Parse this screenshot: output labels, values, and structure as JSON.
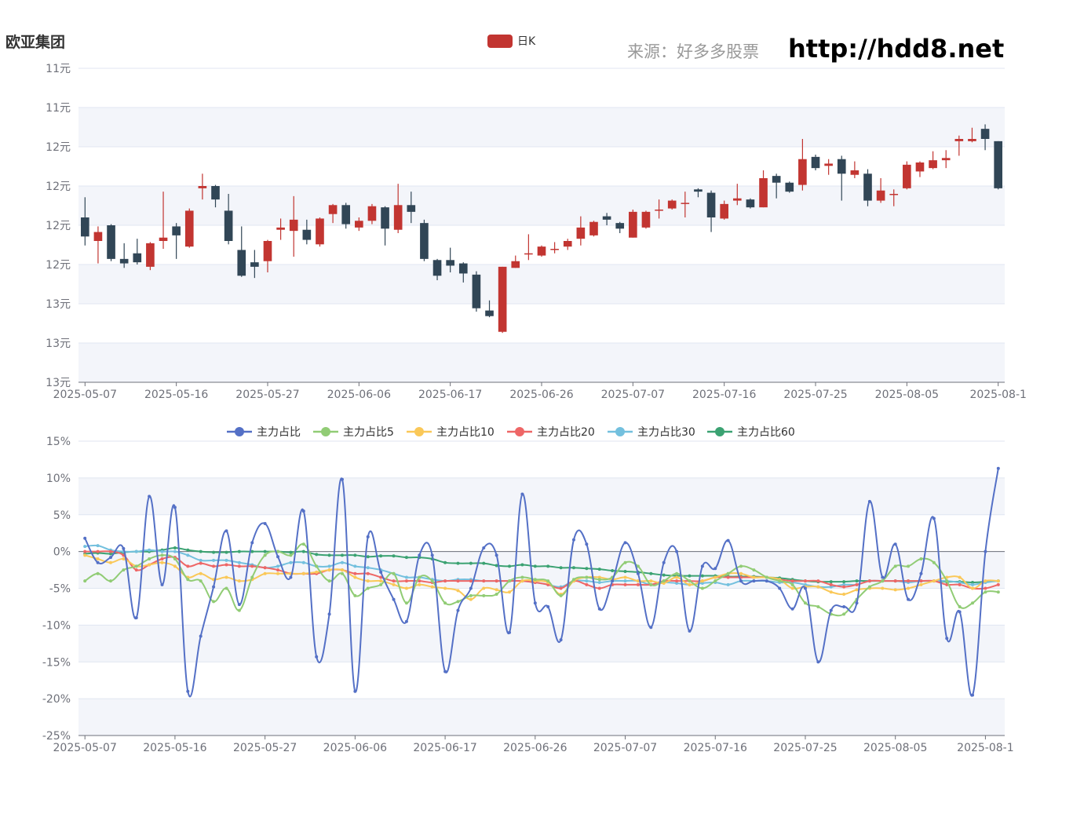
{
  "title": "欧亚集团",
  "source_text": "来源：好多多股票",
  "url_text": "http://hdd8.net",
  "colors": {
    "up": "#c23531",
    "down": "#314656",
    "band": "#f3f5fa",
    "grid": "#e0e6f1",
    "axis": "#6e7079"
  },
  "chart_data": [
    {
      "type": "candlestick",
      "legend": [
        "日K"
      ],
      "y_tick_labels": [
        "11元",
        "11元",
        "12元",
        "12元",
        "12元",
        "12元",
        "13元",
        "13元",
        "13元"
      ],
      "ylim": [
        11.0,
        13.8
      ],
      "x_tick_labels": [
        "2025-05-07",
        "2025-05-16",
        "2025-05-27",
        "2025-06-06",
        "2025-06-17",
        "2025-06-26",
        "2025-07-07",
        "2025-07-16",
        "2025-07-25",
        "2025-08-05",
        "2025-08-1"
      ],
      "x_tick_indices": [
        0,
        7,
        14,
        21,
        28,
        35,
        42,
        49,
        56,
        63,
        70
      ],
      "candles": [
        {
          "o": 12.47,
          "c": 12.3,
          "h": 12.65,
          "l": 12.22
        },
        {
          "o": 12.26,
          "c": 12.34,
          "h": 12.39,
          "l": 12.06
        },
        {
          "o": 12.4,
          "c": 12.1,
          "h": 12.41,
          "l": 12.08
        },
        {
          "o": 12.1,
          "c": 12.06,
          "h": 12.24,
          "l": 12.02
        },
        {
          "o": 12.15,
          "c": 12.07,
          "h": 12.28,
          "l": 12.05
        },
        {
          "o": 12.03,
          "c": 12.24,
          "h": 12.25,
          "l": 12.0
        },
        {
          "o": 12.26,
          "c": 12.29,
          "h": 12.7,
          "l": 12.19
        },
        {
          "o": 12.39,
          "c": 12.31,
          "h": 12.42,
          "l": 12.1
        },
        {
          "o": 12.21,
          "c": 12.53,
          "h": 12.55,
          "l": 12.2
        },
        {
          "o": 12.73,
          "c": 12.75,
          "h": 12.86,
          "l": 12.63
        },
        {
          "o": 12.75,
          "c": 12.63,
          "h": 12.76,
          "l": 12.56
        },
        {
          "o": 12.53,
          "c": 12.26,
          "h": 12.68,
          "l": 12.23
        },
        {
          "o": 12.18,
          "c": 11.95,
          "h": 12.39,
          "l": 11.94
        },
        {
          "o": 12.07,
          "c": 12.03,
          "h": 12.18,
          "l": 11.93
        },
        {
          "o": 12.08,
          "c": 12.26,
          "h": 12.27,
          "l": 11.98
        },
        {
          "o": 12.36,
          "c": 12.38,
          "h": 12.46,
          "l": 12.27
        },
        {
          "o": 12.35,
          "c": 12.45,
          "h": 12.66,
          "l": 12.12
        },
        {
          "o": 12.36,
          "c": 12.27,
          "h": 12.45,
          "l": 12.23
        },
        {
          "o": 12.23,
          "c": 12.46,
          "h": 12.47,
          "l": 12.21
        },
        {
          "o": 12.5,
          "c": 12.58,
          "h": 12.59,
          "l": 12.42
        },
        {
          "o": 12.58,
          "c": 12.41,
          "h": 12.6,
          "l": 12.37
        },
        {
          "o": 12.38,
          "c": 12.44,
          "h": 12.47,
          "l": 12.35
        },
        {
          "o": 12.44,
          "c": 12.57,
          "h": 12.59,
          "l": 12.41
        },
        {
          "o": 12.56,
          "c": 12.37,
          "h": 12.57,
          "l": 12.22
        },
        {
          "o": 12.36,
          "c": 12.58,
          "h": 12.77,
          "l": 12.33
        },
        {
          "o": 12.58,
          "c": 12.52,
          "h": 12.7,
          "l": 12.42
        },
        {
          "o": 12.42,
          "c": 12.1,
          "h": 12.45,
          "l": 12.08
        },
        {
          "o": 12.09,
          "c": 11.95,
          "h": 12.1,
          "l": 11.91
        },
        {
          "o": 12.09,
          "c": 12.04,
          "h": 12.2,
          "l": 11.98
        },
        {
          "o": 12.06,
          "c": 11.97,
          "h": 12.07,
          "l": 11.89
        },
        {
          "o": 11.96,
          "c": 11.66,
          "h": 11.99,
          "l": 11.63
        },
        {
          "o": 11.64,
          "c": 11.59,
          "h": 11.73,
          "l": 11.58
        },
        {
          "o": 11.45,
          "c": 12.03,
          "h": 12.03,
          "l": 11.44
        },
        {
          "o": 12.02,
          "c": 12.08,
          "h": 12.13,
          "l": 12.02
        },
        {
          "o": 12.15,
          "c": 12.15,
          "h": 12.32,
          "l": 12.09
        },
        {
          "o": 12.13,
          "c": 12.21,
          "h": 12.22,
          "l": 12.12
        },
        {
          "o": 12.18,
          "c": 12.19,
          "h": 12.25,
          "l": 12.15
        },
        {
          "o": 12.21,
          "c": 12.26,
          "h": 12.28,
          "l": 12.18
        },
        {
          "o": 12.28,
          "c": 12.38,
          "h": 12.48,
          "l": 12.22
        },
        {
          "o": 12.31,
          "c": 12.43,
          "h": 12.44,
          "l": 12.3
        },
        {
          "o": 12.48,
          "c": 12.45,
          "h": 12.51,
          "l": 12.4
        },
        {
          "o": 12.42,
          "c": 12.37,
          "h": 12.43,
          "l": 12.33
        },
        {
          "o": 12.29,
          "c": 12.52,
          "h": 12.54,
          "l": 12.29
        },
        {
          "o": 12.38,
          "c": 12.52,
          "h": 12.53,
          "l": 12.37
        },
        {
          "o": 12.53,
          "c": 12.54,
          "h": 12.63,
          "l": 12.46
        },
        {
          "o": 12.55,
          "c": 12.62,
          "h": 12.63,
          "l": 12.54
        },
        {
          "o": 12.6,
          "c": 12.6,
          "h": 12.7,
          "l": 12.47
        },
        {
          "o": 12.72,
          "c": 12.7,
          "h": 12.73,
          "l": 12.65
        },
        {
          "o": 12.69,
          "c": 12.47,
          "h": 12.71,
          "l": 12.34
        },
        {
          "o": 12.46,
          "c": 12.59,
          "h": 12.62,
          "l": 12.45
        },
        {
          "o": 12.62,
          "c": 12.64,
          "h": 12.77,
          "l": 12.58
        },
        {
          "o": 12.63,
          "c": 12.56,
          "h": 12.64,
          "l": 12.55
        },
        {
          "o": 12.56,
          "c": 12.82,
          "h": 12.89,
          "l": 12.56
        },
        {
          "o": 12.84,
          "c": 12.78,
          "h": 12.86,
          "l": 12.64
        },
        {
          "o": 12.78,
          "c": 12.7,
          "h": 12.79,
          "l": 12.69
        },
        {
          "o": 12.76,
          "c": 12.99,
          "h": 13.17,
          "l": 12.71
        },
        {
          "o": 13.01,
          "c": 12.91,
          "h": 13.03,
          "l": 12.89
        },
        {
          "o": 12.93,
          "c": 12.95,
          "h": 12.99,
          "l": 12.85
        },
        {
          "o": 12.99,
          "c": 12.86,
          "h": 13.02,
          "l": 12.62
        },
        {
          "o": 12.85,
          "c": 12.89,
          "h": 12.97,
          "l": 12.82
        },
        {
          "o": 12.86,
          "c": 12.62,
          "h": 12.9,
          "l": 12.57
        },
        {
          "o": 12.62,
          "c": 12.71,
          "h": 12.82,
          "l": 12.6
        },
        {
          "o": 12.67,
          "c": 12.68,
          "h": 12.72,
          "l": 12.57
        },
        {
          "o": 12.73,
          "c": 12.94,
          "h": 12.97,
          "l": 12.72
        },
        {
          "o": 12.88,
          "c": 12.96,
          "h": 12.97,
          "l": 12.83
        },
        {
          "o": 12.91,
          "c": 12.98,
          "h": 13.06,
          "l": 12.9
        },
        {
          "o": 12.98,
          "c": 13.0,
          "h": 13.07,
          "l": 12.91
        },
        {
          "o": 13.15,
          "c": 13.17,
          "h": 13.2,
          "l": 13.02
        },
        {
          "o": 13.15,
          "c": 13.17,
          "h": 13.27,
          "l": 13.14
        },
        {
          "o": 13.26,
          "c": 13.17,
          "h": 13.3,
          "l": 13.07
        },
        {
          "o": 13.15,
          "c": 12.73,
          "h": 13.15,
          "l": 12.72
        }
      ]
    },
    {
      "type": "line",
      "legend": [
        "主力占比",
        "主力占比5",
        "主力占比10",
        "主力占比20",
        "主力占比30",
        "主力占比60"
      ],
      "series_colors": [
        "#5470c6",
        "#91cc75",
        "#fac858",
        "#ee6666",
        "#73c0de",
        "#3ba272"
      ],
      "y_tick_labels": [
        "15%",
        "10%",
        "5%",
        "0%",
        "-5%",
        "-10%",
        "-15%",
        "-20%",
        "-25%"
      ],
      "ylim": [
        -25,
        15
      ],
      "x_tick_labels": [
        "2025-05-07",
        "2025-05-16",
        "2025-05-27",
        "2025-06-06",
        "2025-06-17",
        "2025-06-26",
        "2025-07-07",
        "2025-07-16",
        "2025-07-25",
        "2025-08-05",
        "2025-08-1"
      ],
      "x_tick_indices": [
        0,
        7,
        14,
        21,
        28,
        35,
        42,
        49,
        56,
        63,
        70
      ],
      "series": [
        {
          "name": "主力占比",
          "values": [
            1.8,
            -1.5,
            -0.8,
            0.4,
            -9.0,
            7.5,
            -4.5,
            6.0,
            -19.0,
            -11.5,
            -4.8,
            2.8,
            -7.2,
            1.2,
            3.8,
            -0.7,
            -3.5,
            5.5,
            -14.3,
            -8.5,
            9.8,
            -19.0,
            2.0,
            -2.8,
            -6.5,
            -9.5,
            -0.5,
            -0.5,
            -16.3,
            -8.0,
            -5.0,
            0.5,
            -0.5,
            -11.0,
            7.8,
            -7.0,
            -7.5,
            -12.0,
            1.6,
            1.0,
            -7.8,
            -4.0,
            1.2,
            -3.0,
            -10.3,
            -1.5,
            0.0,
            -10.8,
            -2.0,
            -2.3,
            1.5,
            -4.0,
            -4.0,
            -4.0,
            -5.0,
            -7.8,
            -5.0,
            -15.0,
            -8.0,
            -7.5,
            -7.0,
            6.8,
            -3.5,
            1.0,
            -6.5,
            -3.0,
            4.5,
            -11.8,
            -8.2,
            -19.5,
            0.0,
            11.3
          ]
        },
        {
          "name": "主力占比5",
          "values": [
            -4.0,
            -3.0,
            -4.0,
            -2.5,
            -2.0,
            -1.0,
            -0.5,
            -1.0,
            -3.8,
            -4.0,
            -6.8,
            -5.0,
            -8.0,
            -3.5,
            -0.5,
            0.0,
            -0.5,
            1.0,
            -2.0,
            -4.0,
            -3.0,
            -6.0,
            -5.0,
            -4.5,
            -3.0,
            -7.0,
            -3.5,
            -4.0,
            -7.0,
            -6.8,
            -6.0,
            -6.0,
            -5.8,
            -4.0,
            -3.5,
            -3.8,
            -4.0,
            -6.0,
            -3.8,
            -3.5,
            -3.8,
            -3.5,
            -1.5,
            -2.0,
            -4.5,
            -4.0,
            -3.0,
            -4.0,
            -5.0,
            -4.0,
            -3.0,
            -2.0,
            -2.5,
            -3.5,
            -4.0,
            -4.5,
            -7.0,
            -7.5,
            -8.5,
            -8.5,
            -6.5,
            -4.8,
            -4.0,
            -2.0,
            -2.0,
            -1.0,
            -1.5,
            -4.0,
            -7.5,
            -7.0,
            -5.5,
            -5.5
          ]
        },
        {
          "name": "主力占比10",
          "values": [
            -0.5,
            -1.0,
            -1.5,
            -1.0,
            -2.0,
            -1.8,
            -1.5,
            -2.0,
            -3.5,
            -3.0,
            -3.8,
            -3.5,
            -4.0,
            -3.8,
            -3.0,
            -3.0,
            -3.0,
            -3.0,
            -2.8,
            -2.5,
            -2.5,
            -3.5,
            -4.0,
            -4.0,
            -4.5,
            -5.0,
            -4.5,
            -4.8,
            -5.0,
            -5.3,
            -6.5,
            -5.0,
            -5.2,
            -5.5,
            -4.0,
            -4.0,
            -4.2,
            -5.8,
            -4.0,
            -3.5,
            -3.5,
            -3.8,
            -3.5,
            -4.0,
            -4.0,
            -4.3,
            -3.5,
            -4.5,
            -4.0,
            -3.5,
            -3.0,
            -3.0,
            -3.5,
            -3.5,
            -3.8,
            -5.0,
            -4.8,
            -4.8,
            -5.5,
            -5.8,
            -5.2,
            -5.0,
            -5.0,
            -5.2,
            -5.0,
            -4.5,
            -4.0,
            -3.5,
            -3.5,
            -5.0,
            -4.0,
            -4.0
          ]
        },
        {
          "name": "主力占比20",
          "values": [
            0.0,
            0.0,
            0.0,
            -0.5,
            -2.5,
            -1.8,
            -1.0,
            -0.8,
            -2.0,
            -1.6,
            -2.0,
            -1.8,
            -2.0,
            -2.0,
            -2.2,
            -2.5,
            -3.0,
            -3.0,
            -3.0,
            -2.5,
            -2.5,
            -3.0,
            -3.0,
            -3.5,
            -4.0,
            -4.0,
            -4.0,
            -4.2,
            -4.0,
            -4.0,
            -4.0,
            -4.0,
            -4.0,
            -4.0,
            -4.0,
            -4.2,
            -4.5,
            -5.0,
            -4.0,
            -4.5,
            -5.0,
            -4.5,
            -4.5,
            -4.5,
            -4.5,
            -4.0,
            -4.0,
            -4.0,
            -4.0,
            -3.5,
            -3.5,
            -3.5,
            -3.5,
            -3.5,
            -3.8,
            -4.0,
            -4.0,
            -4.0,
            -4.5,
            -4.8,
            -4.5,
            -4.0,
            -4.0,
            -4.0,
            -4.0,
            -4.0,
            -4.0,
            -4.5,
            -4.5,
            -5.0,
            -5.0,
            -4.5
          ]
        },
        {
          "name": "主力占比30",
          "values": [
            0.7,
            0.8,
            0.2,
            0.0,
            0.0,
            0.2,
            0.0,
            0.0,
            -0.5,
            -1.2,
            -1.2,
            -1.2,
            -1.5,
            -1.8,
            -2.2,
            -2.0,
            -1.5,
            -1.5,
            -2.0,
            -2.0,
            -1.5,
            -2.0,
            -2.2,
            -2.5,
            -3.0,
            -3.5,
            -3.5,
            -3.8,
            -4.0,
            -3.8,
            -3.8,
            -4.0,
            -4.0,
            -4.0,
            -4.0,
            -4.2,
            -4.5,
            -4.8,
            -4.0,
            -4.0,
            -4.2,
            -4.0,
            -4.0,
            -4.0,
            -4.5,
            -4.2,
            -4.3,
            -4.5,
            -4.3,
            -4.2,
            -4.5,
            -4.0,
            -4.0,
            -4.0,
            -4.2,
            -4.2,
            -4.5,
            -4.8,
            -4.8,
            -4.5,
            -4.5,
            -4.0,
            -4.0,
            -4.0,
            -4.2,
            -4.0,
            -4.0,
            -4.0,
            -4.2,
            -4.5,
            -4.2,
            -4.0
          ]
        },
        {
          "name": "主力占比60",
          "values": [
            -0.3,
            -0.2,
            -0.3,
            -0.1,
            0.0,
            0.0,
            0.2,
            0.5,
            0.2,
            0.0,
            -0.1,
            -0.1,
            0.0,
            0.0,
            0.0,
            0.0,
            -0.1,
            0.0,
            -0.4,
            -0.5,
            -0.5,
            -0.5,
            -0.7,
            -0.6,
            -0.6,
            -0.8,
            -0.8,
            -1.0,
            -1.5,
            -1.6,
            -1.6,
            -1.6,
            -1.9,
            -2.0,
            -1.8,
            -2.0,
            -2.0,
            -2.2,
            -2.2,
            -2.3,
            -2.4,
            -2.6,
            -2.7,
            -2.8,
            -3.0,
            -3.2,
            -3.3,
            -3.3,
            -3.3,
            -3.3,
            -3.4,
            -3.4,
            -3.4,
            -3.5,
            -3.6,
            -3.8,
            -4.0,
            -4.1,
            -4.1,
            -4.1,
            -4.0,
            -4.0,
            -4.0,
            -4.0,
            -4.0,
            -4.0,
            -4.0,
            -4.1,
            -4.1,
            -4.2,
            -4.1,
            -4.0
          ]
        }
      ]
    }
  ]
}
